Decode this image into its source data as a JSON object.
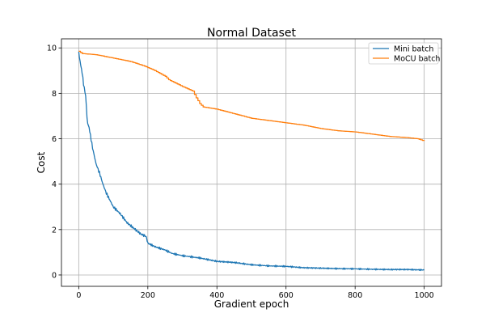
{
  "chart_data": {
    "type": "line",
    "title": "Normal Dataset",
    "xlabel": "Gradient epoch",
    "ylabel": "Cost",
    "xlim": [
      -50,
      1050
    ],
    "ylim": [
      -0.5,
      10.4
    ],
    "xticks": [
      0,
      200,
      400,
      600,
      800,
      1000
    ],
    "yticks": [
      0,
      2,
      4,
      6,
      8,
      10
    ],
    "grid": true,
    "legend": "top-right",
    "series": [
      {
        "name": "Mini batch",
        "color": "#1f77b4",
        "style": "noisy-decay",
        "x": [
          0,
          5,
          10,
          15,
          20,
          25,
          30,
          40,
          50,
          60,
          70,
          80,
          90,
          100,
          120,
          140,
          160,
          180,
          195,
          200,
          220,
          250,
          270,
          300,
          350,
          400,
          450,
          500,
          550,
          600,
          650,
          700,
          750,
          800,
          850,
          900,
          950,
          1000
        ],
        "y": [
          9.8,
          9.3,
          8.9,
          8.3,
          7.9,
          6.7,
          6.5,
          5.6,
          4.9,
          4.5,
          4.0,
          3.6,
          3.3,
          3.0,
          2.7,
          2.3,
          2.05,
          1.8,
          1.7,
          1.4,
          1.25,
          1.1,
          0.95,
          0.85,
          0.75,
          0.6,
          0.55,
          0.45,
          0.4,
          0.38,
          0.32,
          0.3,
          0.28,
          0.27,
          0.25,
          0.24,
          0.24,
          0.22
        ]
      },
      {
        "name": "MoCU batch",
        "color": "#ff7f0e",
        "style": "steps",
        "x": [
          0,
          10,
          50,
          100,
          150,
          190,
          220,
          250,
          260,
          300,
          330,
          340,
          350,
          360,
          400,
          450,
          500,
          550,
          600,
          650,
          700,
          750,
          800,
          850,
          900,
          950,
          980,
          1000
        ],
        "y": [
          9.85,
          9.75,
          9.7,
          9.55,
          9.4,
          9.2,
          9.0,
          8.75,
          8.6,
          8.3,
          8.1,
          7.8,
          7.55,
          7.4,
          7.3,
          7.1,
          6.9,
          6.8,
          6.7,
          6.6,
          6.45,
          6.35,
          6.3,
          6.2,
          6.1,
          6.05,
          6.0,
          5.9
        ]
      }
    ]
  }
}
